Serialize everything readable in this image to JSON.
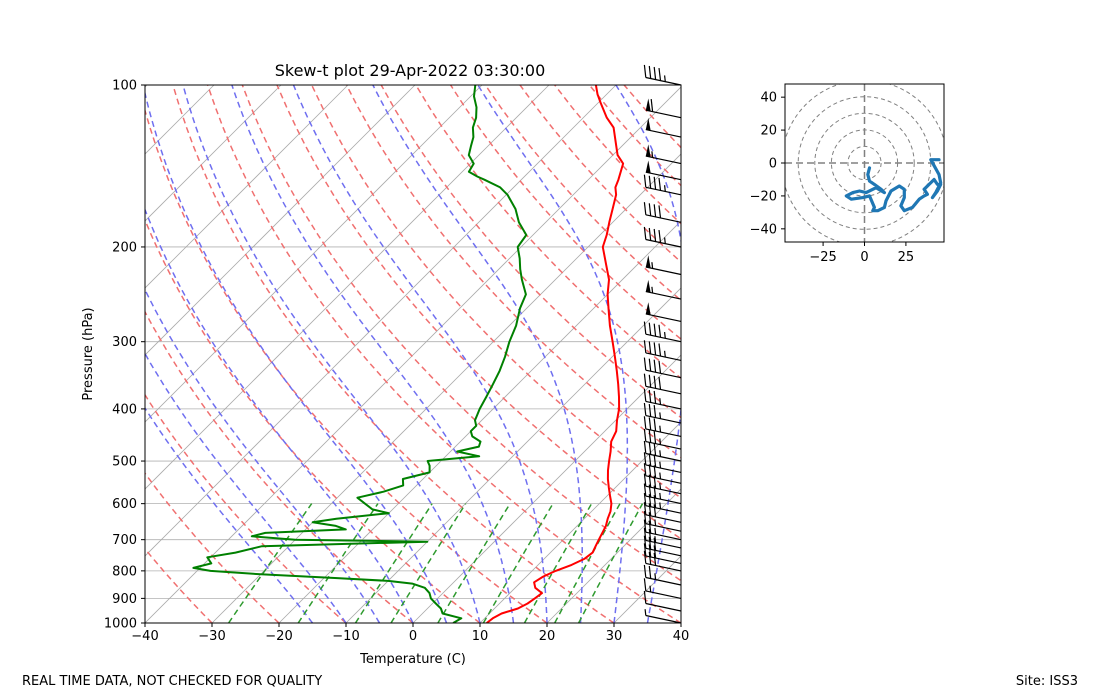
{
  "chart_data": [
    {
      "type": "skew-t",
      "title": "Skew-t plot 29-Apr-2022 03:30:00",
      "xlabel": "Temperature (C)",
      "ylabel": "Pressure (hPa)",
      "xlim": [
        -40,
        40
      ],
      "ylim": [
        1000,
        100
      ],
      "y_scale": "log",
      "grid": true,
      "x_ticks": [
        -40,
        -30,
        -20,
        -10,
        0,
        10,
        20,
        30,
        40
      ],
      "y_ticks": [
        1000,
        900,
        800,
        700,
        600,
        500,
        400,
        300,
        200,
        100
      ],
      "series": [
        {
          "variable": "temperature",
          "color": "#ff0000",
          "points": [
            [
              1000,
              11.0
            ],
            [
              980,
              11.2
            ],
            [
              960,
              11.8
            ],
            [
              940,
              13.5
            ],
            [
              920,
              14.2
            ],
            [
              900,
              14.5
            ],
            [
              880,
              14.8
            ],
            [
              860,
              13.0
            ],
            [
              840,
              12.0
            ],
            [
              820,
              12.5
            ],
            [
              800,
              13.5
            ],
            [
              780,
              15.0
            ],
            [
              760,
              16.0
            ],
            [
              740,
              16.3
            ],
            [
              720,
              15.8
            ],
            [
              700,
              15.3
            ],
            [
              680,
              14.8
            ],
            [
              660,
              14.3
            ],
            [
              640,
              13.5
            ],
            [
              620,
              12.8
            ],
            [
              600,
              11.8
            ],
            [
              580,
              10.4
            ],
            [
              560,
              9.0
            ],
            [
              540,
              7.6
            ],
            [
              520,
              6.3
            ],
            [
              500,
              5.1
            ],
            [
              480,
              3.9
            ],
            [
              460,
              2.5
            ],
            [
              440,
              1.7
            ],
            [
              420,
              0.2
            ],
            [
              400,
              -1.2
            ],
            [
              380,
              -3.0
            ],
            [
              360,
              -5.0
            ],
            [
              340,
              -7.2
            ],
            [
              320,
              -9.6
            ],
            [
              300,
              -12.2
            ],
            [
              280,
              -15.0
            ],
            [
              260,
              -17.8
            ],
            [
              245,
              -20.0
            ],
            [
              230,
              -22.0
            ],
            [
              215,
              -24.8
            ],
            [
              200,
              -27.8
            ],
            [
              190,
              -29.0
            ],
            [
              180,
              -30.5
            ],
            [
              170,
              -32.0
            ],
            [
              160,
              -33.6
            ],
            [
              155,
              -34.8
            ],
            [
              150,
              -35.5
            ],
            [
              140,
              -37.2
            ],
            [
              135,
              -39.3
            ],
            [
              130,
              -40.8
            ],
            [
              120,
              -44.0
            ],
            [
              115,
              -46.5
            ],
            [
              108,
              -49.6
            ],
            [
              104,
              -51.4
            ],
            [
              100,
              -53.0
            ]
          ]
        },
        {
          "variable": "dewpoint",
          "color": "#008000",
          "points": [
            [
              1000,
              6.0
            ],
            [
              980,
              6.5
            ],
            [
              960,
              3.0
            ],
            [
              940,
              2.0
            ],
            [
              920,
              0.5
            ],
            [
              900,
              -1.0
            ],
            [
              880,
              -2.0
            ],
            [
              860,
              -3.5
            ],
            [
              845,
              -6.0
            ],
            [
              835,
              -10.0
            ],
            [
              825,
              -18.0
            ],
            [
              812,
              -30.0
            ],
            [
              800,
              -38.0
            ],
            [
              790,
              -41.0
            ],
            [
              775,
              -39.0
            ],
            [
              755,
              -40.5
            ],
            [
              740,
              -37.0
            ],
            [
              720,
              -34.0
            ],
            [
              706,
              -10.0
            ],
            [
              700,
              -30.0
            ],
            [
              690,
              -37.0
            ],
            [
              680,
              -35.5
            ],
            [
              670,
              -24.0
            ],
            [
              660,
              -26.0
            ],
            [
              650,
              -30.0
            ],
            [
              640,
              -27.0
            ],
            [
              625,
              -20.0
            ],
            [
              615,
              -23.0
            ],
            [
              600,
              -25.0
            ],
            [
              585,
              -27.0
            ],
            [
              570,
              -24.0
            ],
            [
              555,
              -22.0
            ],
            [
              540,
              -23.0
            ],
            [
              525,
              -20.0
            ],
            [
              510,
              -21.0
            ],
            [
              500,
              -22.0
            ],
            [
              490,
              -15.0
            ],
            [
              480,
              -19.0
            ],
            [
              470,
              -16.5
            ],
            [
              460,
              -17.0
            ],
            [
              450,
              -19.0
            ],
            [
              440,
              -20.0
            ],
            [
              430,
              -20.0
            ],
            [
              420,
              -21.0
            ],
            [
              410,
              -21.5
            ],
            [
              400,
              -22.0
            ],
            [
              380,
              -22.8
            ],
            [
              360,
              -23.7
            ],
            [
              340,
              -24.7
            ],
            [
              320,
              -26.0
            ],
            [
              300,
              -27.6
            ],
            [
              280,
              -29.0
            ],
            [
              260,
              -31.0
            ],
            [
              245,
              -32.2
            ],
            [
              230,
              -35.0
            ],
            [
              220,
              -36.8
            ],
            [
              210,
              -38.5
            ],
            [
              200,
              -40.5
            ],
            [
              190,
              -41.0
            ],
            [
              180,
              -44.0
            ],
            [
              170,
              -46.5
            ],
            [
              160,
              -49.8
            ],
            [
              155,
              -52.0
            ],
            [
              150,
              -55.5
            ],
            [
              148,
              -57.0
            ],
            [
              145,
              -59.0
            ],
            [
              140,
              -59.5
            ],
            [
              135,
              -61.5
            ],
            [
              130,
              -62.5
            ],
            [
              125,
              -63.5
            ],
            [
              120,
              -65.0
            ],
            [
              115,
              -66.0
            ],
            [
              110,
              -67.5
            ],
            [
              105,
              -69.5
            ],
            [
              100,
              -71.0
            ]
          ]
        }
      ],
      "reference_lines": {
        "isotherms_color": "#aaaaaa",
        "dry_adiabats_color": "#f07070",
        "moist_adiabats_color": "#6f6ff0",
        "mixing_ratio_color": "#2e9a2e"
      },
      "wind_barbs": {
        "color": "#000000",
        "pressures": [
          1000,
          950,
          900,
          850,
          800,
          775,
          750,
          725,
          700,
          675,
          650,
          625,
          600,
          575,
          550,
          525,
          500,
          475,
          450,
          425,
          400,
          375,
          350,
          325,
          300,
          275,
          250,
          225,
          200,
          180,
          160,
          150,
          140,
          125,
          115,
          100
        ],
        "speed_kt": [
          5,
          10,
          15,
          25,
          30,
          30,
          30,
          25,
          25,
          25,
          30,
          35,
          35,
          35,
          35,
          35,
          35,
          35,
          35,
          35,
          35,
          40,
          40,
          45,
          45,
          50,
          55,
          55,
          45,
          40,
          45,
          50,
          55,
          50,
          60,
          45
        ]
      }
    },
    {
      "type": "hodograph",
      "xlim": [
        -48,
        48
      ],
      "ylim": [
        -48,
        48
      ],
      "x_ticks": [
        -25,
        0,
        25
      ],
      "y_ticks": [
        40,
        20,
        0,
        -20,
        -40
      ],
      "rings": [
        10,
        20,
        30,
        40,
        50
      ],
      "line_color": "#1f77b4",
      "points": [
        [
          3,
          -3
        ],
        [
          2,
          -7
        ],
        [
          3,
          -11
        ],
        [
          6,
          -13
        ],
        [
          10,
          -16
        ],
        [
          12,
          -18
        ],
        [
          7,
          -15
        ],
        [
          1,
          -18
        ],
        [
          -3,
          -17
        ],
        [
          -7,
          -18
        ],
        [
          -11,
          -20
        ],
        [
          -8,
          -22
        ],
        [
          -1,
          -21
        ],
        [
          3,
          -20
        ],
        [
          6,
          -27
        ],
        [
          5,
          -29
        ],
        [
          8,
          -29
        ],
        [
          12,
          -27
        ],
        [
          13,
          -23
        ],
        [
          16,
          -17
        ],
        [
          21,
          -14
        ],
        [
          24,
          -16
        ],
        [
          24,
          -21
        ],
        [
          22,
          -26
        ],
        [
          24,
          -29
        ],
        [
          29,
          -27
        ],
        [
          33,
          -22
        ],
        [
          36,
          -20
        ],
        [
          38,
          -19
        ],
        [
          36,
          -16
        ],
        [
          39,
          -13
        ],
        [
          42,
          -10
        ],
        [
          44,
          -13
        ],
        [
          46,
          -13
        ],
        [
          44,
          -17
        ],
        [
          41,
          -21
        ],
        [
          43,
          -18
        ],
        [
          46,
          -12
        ],
        [
          45,
          -7
        ],
        [
          40,
          2
        ],
        [
          45,
          2
        ]
      ]
    }
  ],
  "footer": {
    "left": "REAL TIME DATA, NOT CHECKED FOR QUALITY",
    "right": "Site: ISS3"
  }
}
